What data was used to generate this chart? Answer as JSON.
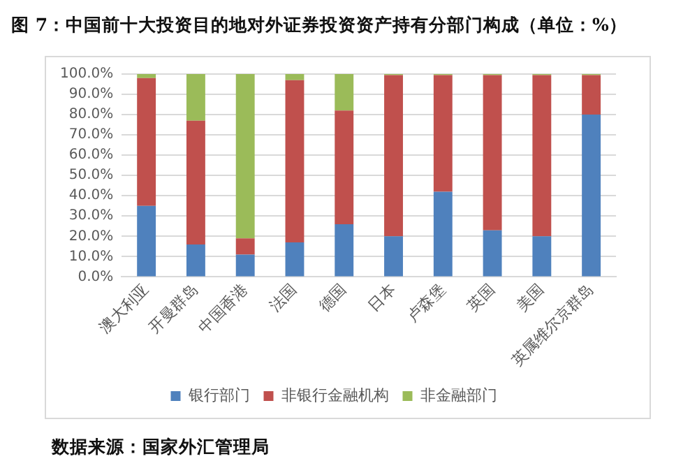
{
  "chart_data": {
    "type": "bar",
    "stacked": true,
    "title": "图 7：中国前十大投资目的地对外证券投资资产持有分部门构成（单位：%）",
    "categories": [
      "澳大利亚",
      "开曼群岛",
      "中国香港",
      "法国",
      "德国",
      "日本",
      "卢森堡",
      "英国",
      "美国",
      "英属维尔京群岛"
    ],
    "series": [
      {
        "name": "银行部门",
        "color": "#4f81bd",
        "values": [
          35,
          16,
          11,
          17,
          26,
          20,
          42,
          23,
          20,
          80
        ]
      },
      {
        "name": "非银行金融机构",
        "color": "#c0504d",
        "values": [
          63,
          61,
          8,
          80,
          56,
          79.5,
          57.5,
          76.5,
          79.5,
          19.5
        ]
      },
      {
        "name": "非金融部门",
        "color": "#9bbb59",
        "values": [
          2,
          23,
          81,
          3,
          18,
          0.5,
          0.5,
          0.5,
          0.5,
          0.5
        ]
      }
    ],
    "ylim": [
      0,
      100
    ],
    "yticks": [
      {
        "value": 0,
        "label": "0.0%"
      },
      {
        "value": 10,
        "label": "10.0%"
      },
      {
        "value": 20,
        "label": "20.0%"
      },
      {
        "value": 30,
        "label": "30.0%"
      },
      {
        "value": 40,
        "label": "40.0%"
      },
      {
        "value": 50,
        "label": "50.0%"
      },
      {
        "value": 60,
        "label": "60.0%"
      },
      {
        "value": 70,
        "label": "70.0%"
      },
      {
        "value": 80,
        "label": "80.0%"
      },
      {
        "value": 90,
        "label": "90.0%"
      },
      {
        "value": 100,
        "label": "100.0%"
      }
    ],
    "grid": "y",
    "legend": "bottom",
    "annotations": [
      "数据来源：国家外汇管理局"
    ]
  }
}
